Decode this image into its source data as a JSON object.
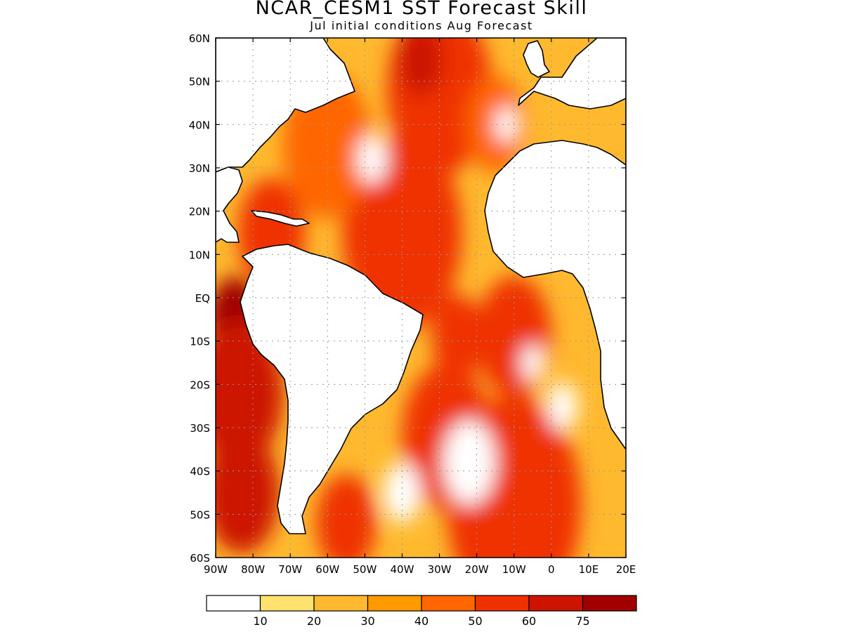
{
  "title": "NCAR_CESM1  SST Forecast Skill",
  "subtitle": "Jul initial conditions  Aug Forecast",
  "map": {
    "lon_range": [
      -90,
      20
    ],
    "lat_range": [
      -60,
      60
    ],
    "grid": true,
    "lat_ticks": [
      {
        "value": 60,
        "label": "60N"
      },
      {
        "value": 50,
        "label": "50N"
      },
      {
        "value": 40,
        "label": "40N"
      },
      {
        "value": 30,
        "label": "30N"
      },
      {
        "value": 20,
        "label": "20N"
      },
      {
        "value": 10,
        "label": "10N"
      },
      {
        "value": 0,
        "label": "EQ"
      },
      {
        "value": -10,
        "label": "10S"
      },
      {
        "value": -20,
        "label": "20S"
      },
      {
        "value": -30,
        "label": "30S"
      },
      {
        "value": -40,
        "label": "40S"
      },
      {
        "value": -50,
        "label": "50S"
      },
      {
        "value": -60,
        "label": "60S"
      }
    ],
    "lon_ticks": [
      {
        "value": -90,
        "label": "90W"
      },
      {
        "value": -80,
        "label": "80W"
      },
      {
        "value": -70,
        "label": "70W"
      },
      {
        "value": -60,
        "label": "60W"
      },
      {
        "value": -50,
        "label": "50W"
      },
      {
        "value": -40,
        "label": "40W"
      },
      {
        "value": -30,
        "label": "30W"
      },
      {
        "value": -20,
        "label": "20W"
      },
      {
        "value": -10,
        "label": "10W"
      },
      {
        "value": 0,
        "label": "0"
      },
      {
        "value": 10,
        "label": "10E"
      },
      {
        "value": 20,
        "label": "20E"
      }
    ],
    "skill_blobs": [
      {
        "lon": -75,
        "lat": 15,
        "r": 9,
        "v": 55
      },
      {
        "lon": -40,
        "lat": 15,
        "r": 16,
        "v": 52
      },
      {
        "lon": -30,
        "lat": 48,
        "r": 14,
        "v": 55
      },
      {
        "lon": -35,
        "lat": 55,
        "r": 6,
        "v": 68
      },
      {
        "lon": -62,
        "lat": 33,
        "r": 6,
        "v": 62
      },
      {
        "lon": -60,
        "lat": 35,
        "r": 12,
        "v": 48
      },
      {
        "lon": -15,
        "lat": 40,
        "r": 8,
        "v": 42
      },
      {
        "lon": -85,
        "lat": -5,
        "r": 7,
        "v": 80
      },
      {
        "lon": -84,
        "lat": -22,
        "r": 12,
        "v": 62
      },
      {
        "lon": -83,
        "lat": -45,
        "r": 10,
        "v": 62
      },
      {
        "lon": -10,
        "lat": -9,
        "r": 10,
        "v": 58
      },
      {
        "lon": -25,
        "lat": -9,
        "r": 7,
        "v": 55
      },
      {
        "lon": -28,
        "lat": -32,
        "r": 12,
        "v": 52
      },
      {
        "lon": -10,
        "lat": -48,
        "r": 18,
        "v": 58
      },
      {
        "lon": -55,
        "lat": -52,
        "r": 8,
        "v": 50
      },
      {
        "lon": -48,
        "lat": 32,
        "r": 4,
        "v": 3
      },
      {
        "lon": -22,
        "lat": -38,
        "r": 7,
        "v": 8
      },
      {
        "lon": -5,
        "lat": -15,
        "r": 3,
        "v": 5
      },
      {
        "lon": -12,
        "lat": 40,
        "r": 3,
        "v": 5
      },
      {
        "lon": -40,
        "lat": -45,
        "r": 5,
        "v": 6
      },
      {
        "lon": 3,
        "lat": -25,
        "r": 4,
        "v": 5
      }
    ]
  },
  "colorbar": {
    "levels": [
      10,
      20,
      30,
      40,
      50,
      60,
      75
    ],
    "labels": [
      "10",
      "20",
      "30",
      "40",
      "50",
      "60",
      "75"
    ],
    "colors": [
      "#ffffff",
      "#ffe16e",
      "#ffb92e",
      "#ff9a00",
      "#ff6600",
      "#ef3000",
      "#cc1400",
      "#a00000"
    ]
  }
}
